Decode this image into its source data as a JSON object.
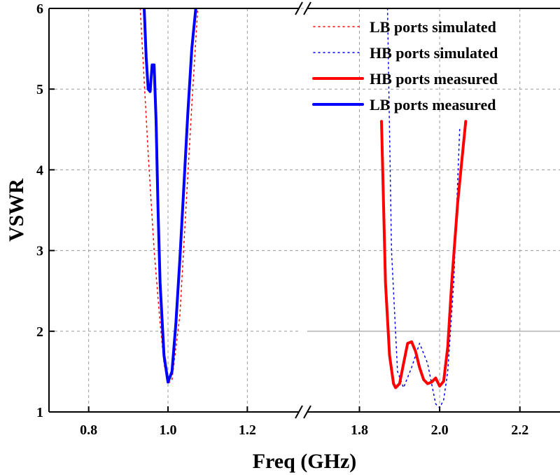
{
  "chart_data": {
    "type": "line",
    "xlabel": "Freq (GHz)",
    "ylabel": "VSWR",
    "ylim": [
      1,
      6
    ],
    "yticks": [
      "1",
      "2",
      "3",
      "4",
      "5",
      "6"
    ],
    "x_break": true,
    "x_segments": [
      {
        "range": [
          0.7,
          1.33
        ],
        "ticks": [
          "0.8",
          "1.0",
          "1.2"
        ]
      },
      {
        "range": [
          1.67,
          2.3
        ],
        "ticks": [
          "1.8",
          "2.0",
          "2.2"
        ]
      }
    ],
    "grid": true,
    "reference_line_y": 2,
    "legend_position": "top-right",
    "colors": {
      "lb": "#0000ff",
      "hb": "#ff0000"
    },
    "series": [
      {
        "name": "LB ports simulated",
        "color": "#ff0000",
        "style": "dotted",
        "segment": 0,
        "x": [
          0.93,
          0.95,
          0.965,
          0.98,
          0.99,
          1.0,
          1.01,
          1.03,
          1.06,
          1.075
        ],
        "y": [
          6.0,
          4.2,
          3.0,
          2.1,
          1.6,
          1.35,
          1.4,
          2.2,
          4.8,
          6.0
        ]
      },
      {
        "name": "HB ports simulated",
        "color": "#0000ff",
        "style": "dotted",
        "segment": 1,
        "x": [
          1.87,
          1.88,
          1.895,
          1.91,
          1.93,
          1.95,
          1.97,
          1.98,
          1.99,
          2.0,
          2.01,
          2.02,
          2.035,
          2.05
        ],
        "y": [
          6.0,
          3.0,
          1.5,
          1.3,
          1.55,
          1.85,
          1.6,
          1.35,
          1.1,
          1.05,
          1.15,
          1.5,
          2.6,
          4.5
        ]
      },
      {
        "name": "HB ports measured",
        "color": "#ff0000",
        "style": "solid",
        "segment": 1,
        "x": [
          1.855,
          1.865,
          1.875,
          1.885,
          1.89,
          1.9,
          1.91,
          1.92,
          1.93,
          1.94,
          1.95,
          1.96,
          1.97,
          1.98,
          1.99,
          2.0,
          2.01,
          2.02,
          2.03,
          2.045,
          2.065
        ],
        "y": [
          4.6,
          2.6,
          1.7,
          1.35,
          1.3,
          1.35,
          1.6,
          1.85,
          1.87,
          1.75,
          1.55,
          1.4,
          1.35,
          1.37,
          1.42,
          1.32,
          1.38,
          1.8,
          2.6,
          3.6,
          4.6
        ]
      },
      {
        "name": "LB ports measured",
        "color": "#0000ff",
        "style": "solid",
        "segment": 0,
        "x": [
          0.94,
          0.945,
          0.95,
          0.955,
          0.96,
          0.965,
          0.97,
          0.975,
          0.98,
          0.99,
          1.0,
          1.01,
          1.02,
          1.03,
          1.04,
          1.05,
          1.06,
          1.07
        ],
        "y": [
          6.0,
          5.4,
          5.0,
          4.97,
          5.3,
          5.3,
          4.6,
          3.5,
          2.6,
          1.7,
          1.37,
          1.5,
          2.1,
          2.9,
          3.8,
          4.7,
          5.5,
          6.0
        ]
      }
    ]
  }
}
